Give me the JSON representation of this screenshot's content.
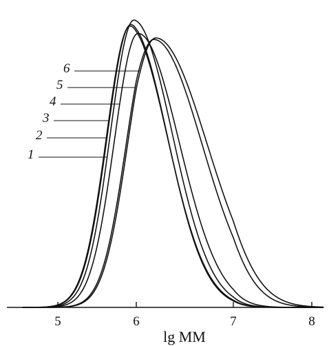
{
  "chart_data": {
    "type": "line",
    "xlabel": "lg MM",
    "ylabel": "",
    "xlim": [
      4.55,
      8.15
    ],
    "xticks": [
      5,
      6,
      7,
      8
    ],
    "grid": false,
    "series": [
      {
        "name": "1",
        "peak_x": 5.97,
        "height": 0.965,
        "sigma_left": 0.3,
        "sigma_right": 0.4
      },
      {
        "name": "2",
        "peak_x": 5.92,
        "height": 0.945,
        "sigma_left": 0.3,
        "sigma_right": 0.4
      },
      {
        "name": "3",
        "peak_x": 5.93,
        "height": 0.95,
        "sigma_left": 0.3,
        "sigma_right": 0.39
      },
      {
        "name": "4",
        "peak_x": 6.02,
        "height": 0.92,
        "sigma_left": 0.3,
        "sigma_right": 0.42
      },
      {
        "name": "5",
        "peak_x": 6.18,
        "height": 0.9,
        "sigma_left": 0.31,
        "sigma_right": 0.5
      },
      {
        "name": "6",
        "peak_x": 6.2,
        "height": 0.905,
        "sigma_left": 0.31,
        "sigma_right": 0.53
      }
    ]
  }
}
